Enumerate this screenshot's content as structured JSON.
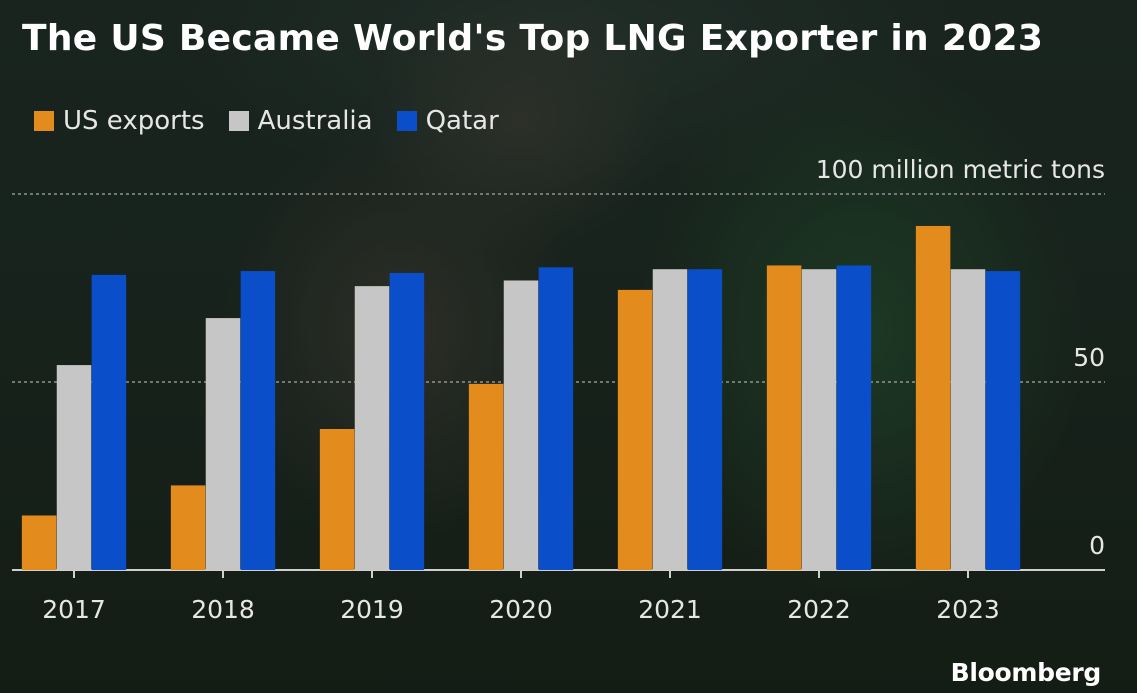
{
  "title": "The US Became World's Top LNG Exporter in 2023",
  "branding": "Bloomberg",
  "colors": {
    "us": "#e38b1c",
    "australia": "#c6c6c6",
    "qatar": "#0a4fc9",
    "gridline": "#a9a9a9",
    "text": "#e6e6e6"
  },
  "chart_data": {
    "type": "bar",
    "title": "The US Became World's Top LNG Exporter in 2023",
    "ylabel": "million metric tons",
    "categories": [
      "2017",
      "2018",
      "2019",
      "2020",
      "2021",
      "2022",
      "2023"
    ],
    "series": [
      {
        "name": "US exports",
        "color": "#e38b1c",
        "values": [
          14.5,
          22.5,
          37.5,
          49.5,
          74.5,
          81,
          91.5
        ]
      },
      {
        "name": "Australia",
        "color": "#c6c6c6",
        "values": [
          54.5,
          67,
          75.5,
          77,
          80,
          80,
          80
        ]
      },
      {
        "name": "Qatar",
        "color": "#0a4fc9",
        "values": [
          78.5,
          79.5,
          79,
          80.5,
          80,
          81,
          79.5
        ]
      }
    ],
    "ylim": [
      0,
      100
    ],
    "yticks": [
      0,
      50,
      100
    ],
    "ytick_labels": [
      "0",
      "50",
      "100 million metric tons"
    ],
    "grid": true,
    "legend": "top-left"
  }
}
